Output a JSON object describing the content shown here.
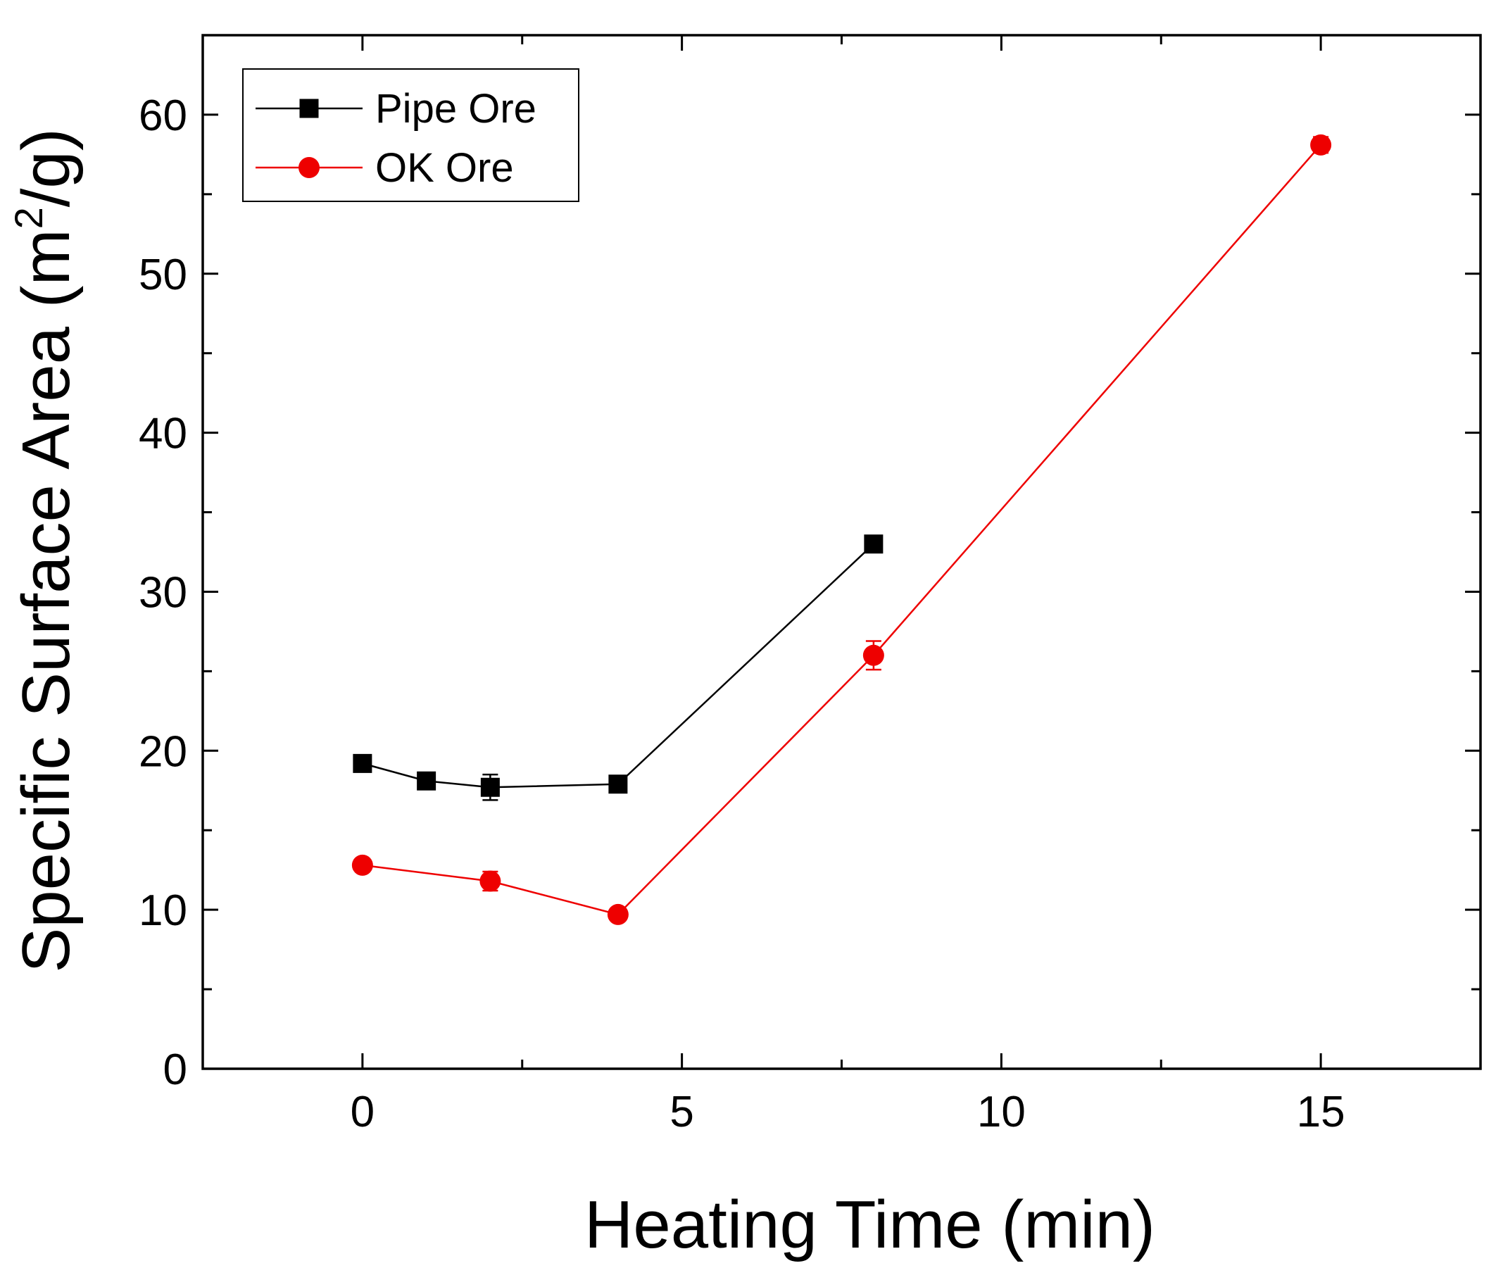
{
  "chart_data": {
    "type": "line",
    "title": "",
    "xlabel": "Heating Time (min)",
    "ylabel": {
      "prefix": "Specific Surface Area (m",
      "superscript": "2",
      "suffix": "/g)"
    },
    "xlim": [
      -2.5,
      17.5
    ],
    "ylim": [
      0,
      65
    ],
    "x_ticks": [
      0,
      5,
      10,
      15
    ],
    "x_tick_labels": [
      "0",
      "5",
      "10",
      "15"
    ],
    "x_minor_ticks": [
      2.5,
      7.5,
      12.5
    ],
    "y_ticks": [
      0,
      10,
      20,
      30,
      40,
      50,
      60
    ],
    "y_tick_labels": [
      "0",
      "10",
      "20",
      "30",
      "40",
      "50",
      "60"
    ],
    "y_minor_ticks": [
      5,
      15,
      25,
      35,
      45,
      55
    ],
    "grid": false,
    "legend_position": "top-left",
    "series": [
      {
        "name": "Pipe Ore",
        "color": "#000000",
        "marker": "square",
        "x": [
          0,
          1,
          2,
          4,
          8
        ],
        "y": [
          19.2,
          18.1,
          17.7,
          17.9,
          33.0
        ],
        "error": [
          0.3,
          0.3,
          0.8,
          0.3,
          0.3
        ]
      },
      {
        "name": "OK Ore",
        "color": "#ee0000",
        "marker": "circle",
        "x": [
          0,
          2,
          4,
          8,
          15
        ],
        "y": [
          12.8,
          11.8,
          9.7,
          26.0,
          58.1
        ],
        "error": [
          0.3,
          0.6,
          0.3,
          0.9,
          0.5
        ]
      }
    ]
  }
}
